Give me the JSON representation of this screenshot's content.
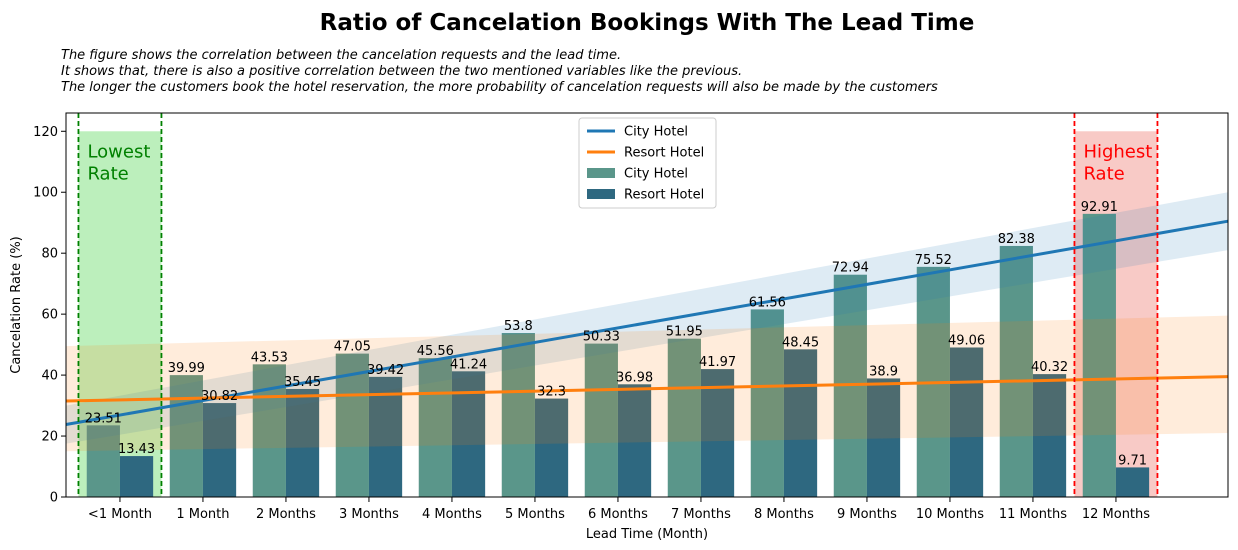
{
  "chart_data": {
    "type": "bar",
    "title": "Ratio of Cancelation Bookings With The Lead Time",
    "subtitle_lines": [
      "The figure shows the correlation between the cancelation requests and the lead time.",
      "It shows that, there is also a positive correlation between the two mentioned variables like the previous.",
      "The longer the customers book the hotel reservation, the more probability of cancelation requests will also be made by the customers"
    ],
    "xlabel": "Lead Time (Month)",
    "ylabel": "Cancelation Rate (%)",
    "ylim": [
      0,
      126
    ],
    "yticks": [
      0,
      20,
      40,
      60,
      80,
      100,
      120
    ],
    "categories": [
      "<1 Month",
      "1 Month",
      "2 Months",
      "3 Months",
      "4 Months",
      "5 Months",
      "6 Months",
      "7 Months",
      "8 Months",
      "9 Months",
      "10 Months",
      "11 Months",
      "12 Months"
    ],
    "series": [
      {
        "name": "City Hotel",
        "values": [
          23.51,
          39.99,
          43.53,
          47.05,
          45.56,
          53.8,
          50.33,
          51.95,
          61.56,
          72.94,
          75.52,
          82.38,
          92.91
        ],
        "value_labels": [
          "23.51",
          "39.99",
          "43.53",
          "47.05",
          "45.56",
          "53.8",
          "50.33",
          "51.95",
          "61.56",
          "72.94",
          "75.52",
          "82.38",
          "92.91"
        ],
        "color": "#5a968a"
      },
      {
        "name": "Resort Hotel",
        "values": [
          13.43,
          30.82,
          35.45,
          39.42,
          41.24,
          32.3,
          36.98,
          41.97,
          48.45,
          38.9,
          49.06,
          40.32,
          9.71
        ],
        "value_labels": [
          "13.43",
          "30.82",
          "35.45",
          "39.42",
          "41.24",
          "32.3",
          "36.98",
          "41.97",
          "48.45",
          "38.9",
          "49.06",
          "40.32",
          "9.71"
        ],
        "color": "#2e6880"
      }
    ],
    "regression_lines": [
      {
        "name": "City Hotel",
        "color": "#1f77b4",
        "x_range": [
          -0.65,
          13.35
        ],
        "y_at_x_range": [
          23.8,
          90.5
        ],
        "band_low": [
          17.5,
          81.0
        ],
        "band_high": [
          30.0,
          100.0
        ]
      },
      {
        "name": "Resort Hotel",
        "color": "#ff7f0e",
        "x_range": [
          -0.65,
          13.35
        ],
        "y_at_x_range": [
          31.5,
          39.5
        ],
        "band_low": [
          15.0,
          21.0
        ],
        "band_high": [
          49.5,
          59.5
        ]
      }
    ],
    "highlight_regions": [
      {
        "label_lines": [
          "Lowest",
          "Rate"
        ],
        "x_range": [
          -0.5,
          0.5
        ],
        "y_top": 120,
        "fill": "#90e590",
        "line_color": "#008000",
        "text_color": "#008000"
      },
      {
        "label_lines": [
          "Highest",
          "Rate"
        ],
        "x_range": [
          11.5,
          12.5
        ],
        "y_top": 120,
        "fill": "#f4a6a0",
        "line_color": "#ff0000",
        "text_color": "#ff0000"
      }
    ],
    "legend": {
      "placement": "upper-center",
      "entries": [
        {
          "label": "City Hotel",
          "kind": "line",
          "color": "#1f77b4"
        },
        {
          "label": "Resort Hotel",
          "kind": "line",
          "color": "#ff7f0e"
        },
        {
          "label": "City Hotel",
          "kind": "patch",
          "color": "#5a968a"
        },
        {
          "label": "Resort Hotel",
          "kind": "patch",
          "color": "#2e6880"
        }
      ]
    },
    "grid": false
  }
}
